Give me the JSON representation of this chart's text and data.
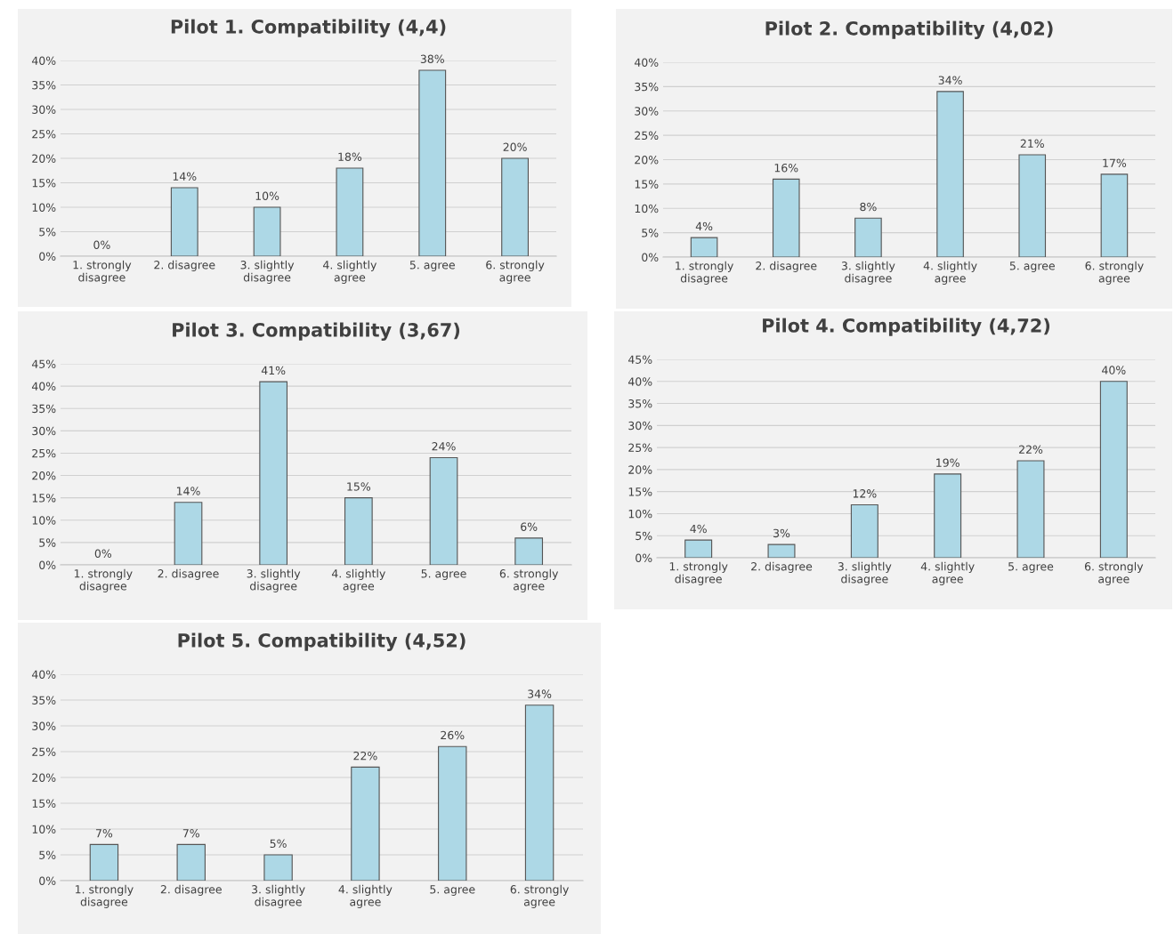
{
  "chart_data": [
    {
      "type": "bar",
      "title": "Pilot 1. Compatibility (4,4)",
      "categories": [
        "1. strongly\ndisagree",
        "2. disagree",
        "3. slightly\ndisagree",
        "4. slightly\nagree",
        "5. agree",
        "6. strongly\nagree"
      ],
      "values": [
        0,
        14,
        10,
        18,
        38,
        20
      ],
      "value_labels": [
        "0%",
        "14%",
        "10%",
        "18%",
        "38%",
        "20%"
      ],
      "color": "#add8e6",
      "ylim": [
        0,
        40
      ],
      "yticks": [
        {
          "value": 0,
          "label": "0%"
        },
        {
          "value": 5,
          "label": "5%"
        },
        {
          "value": 10,
          "label": "10%"
        },
        {
          "value": 15,
          "label": "15%"
        },
        {
          "value": 20,
          "label": "20%"
        },
        {
          "value": 25,
          "label": "25%"
        },
        {
          "value": 30,
          "label": "30%"
        },
        {
          "value": 35,
          "label": "35%"
        },
        {
          "value": 40,
          "label": "40%"
        }
      ],
      "grid": "y"
    },
    {
      "type": "bar",
      "title": "Pilot 2. Compatibility (4,02)",
      "categories": [
        "1. strongly\ndisagree",
        "2. disagree",
        "3. slightly\ndisagree",
        "4. slightly\nagree",
        "5. agree",
        "6. strongly\nagree"
      ],
      "values": [
        4,
        16,
        8,
        34,
        21,
        17
      ],
      "value_labels": [
        "4%",
        "16%",
        "8%",
        "34%",
        "21%",
        "17%"
      ],
      "color": "#add8e6",
      "ylim": [
        0,
        40
      ],
      "yticks": [
        {
          "value": 0,
          "label": "0%"
        },
        {
          "value": 5,
          "label": "5%"
        },
        {
          "value": 10,
          "label": "10%"
        },
        {
          "value": 15,
          "label": "15%"
        },
        {
          "value": 20,
          "label": "20%"
        },
        {
          "value": 25,
          "label": "25%"
        },
        {
          "value": 30,
          "label": "30%"
        },
        {
          "value": 35,
          "label": "35%"
        },
        {
          "value": 40,
          "label": "40%"
        }
      ],
      "grid": "y"
    },
    {
      "type": "bar",
      "title": "Pilot 3. Compatibility (3,67)",
      "categories": [
        "1. strongly\ndisagree",
        "2. disagree",
        "3. slightly\ndisagree",
        "4. slightly\nagree",
        "5. agree",
        "6. strongly\nagree"
      ],
      "values": [
        0,
        14,
        41,
        15,
        24,
        6
      ],
      "value_labels": [
        "0%",
        "14%",
        "41%",
        "15%",
        "24%",
        "6%"
      ],
      "color": "#add8e6",
      "ylim": [
        0,
        45
      ],
      "yticks": [
        {
          "value": 0,
          "label": "0%"
        },
        {
          "value": 5,
          "label": "5%"
        },
        {
          "value": 10,
          "label": "10%"
        },
        {
          "value": 15,
          "label": "15%"
        },
        {
          "value": 20,
          "label": "20%"
        },
        {
          "value": 25,
          "label": "25%"
        },
        {
          "value": 30,
          "label": "30%"
        },
        {
          "value": 35,
          "label": "35%"
        },
        {
          "value": 40,
          "label": "40%"
        },
        {
          "value": 45,
          "label": "45%"
        }
      ],
      "grid": "y"
    },
    {
      "type": "bar",
      "title": "Pilot 4. Compatibility (4,72)",
      "categories": [
        "1. strongly\ndisagree",
        "2. disagree",
        "3. slightly\ndisagree",
        "4. slightly\nagree",
        "5. agree",
        "6. strongly\nagree"
      ],
      "values": [
        4,
        3,
        12,
        19,
        22,
        40
      ],
      "value_labels": [
        "4%",
        "3%",
        "12%",
        "19%",
        "22%",
        "40%"
      ],
      "color": "#add8e6",
      "ylim": [
        0,
        45
      ],
      "yticks": [
        {
          "value": 0,
          "label": "0%"
        },
        {
          "value": 5,
          "label": "5%"
        },
        {
          "value": 10,
          "label": "10%"
        },
        {
          "value": 15,
          "label": "15%"
        },
        {
          "value": 20,
          "label": "20%"
        },
        {
          "value": 25,
          "label": "25%"
        },
        {
          "value": 30,
          "label": "30%"
        },
        {
          "value": 35,
          "label": "35%"
        },
        {
          "value": 40,
          "label": "40%"
        },
        {
          "value": 45,
          "label": "45%"
        }
      ],
      "grid": "y"
    },
    {
      "type": "bar",
      "title": "Pilot 5. Compatibility (4,52)",
      "categories": [
        "1. strongly\ndisagree",
        "2. disagree",
        "3. slightly\ndisagree",
        "4. slightly\nagree",
        "5. agree",
        "6. strongly\nagree"
      ],
      "values": [
        7,
        7,
        5,
        22,
        26,
        34
      ],
      "value_labels": [
        "7%",
        "7%",
        "5%",
        "22%",
        "26%",
        "34%"
      ],
      "color": "#add8e6",
      "ylim": [
        0,
        40
      ],
      "yticks": [
        {
          "value": 0,
          "label": "0%"
        },
        {
          "value": 5,
          "label": "5%"
        },
        {
          "value": 10,
          "label": "10%"
        },
        {
          "value": 15,
          "label": "15%"
        },
        {
          "value": 20,
          "label": "20%"
        },
        {
          "value": 25,
          "label": "25%"
        },
        {
          "value": 30,
          "label": "30%"
        },
        {
          "value": 35,
          "label": "35%"
        },
        {
          "value": 40,
          "label": "40%"
        }
      ],
      "grid": "y"
    }
  ]
}
